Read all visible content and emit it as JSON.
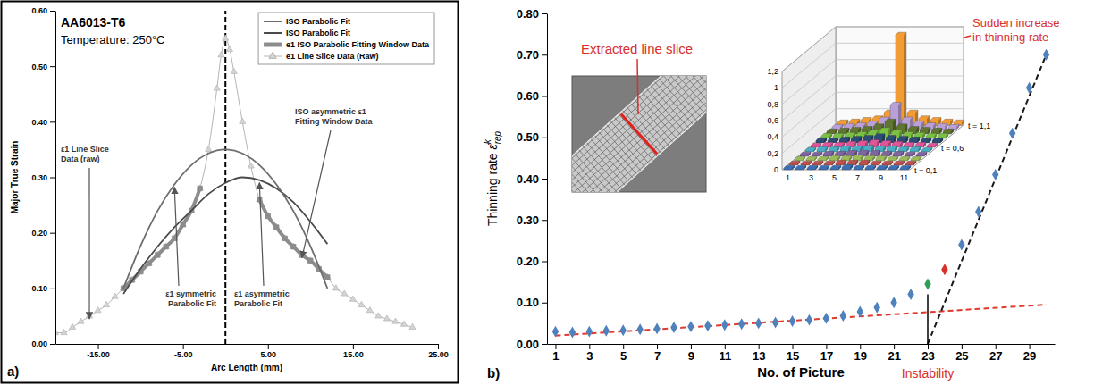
{
  "chart_data": [
    {
      "type": "line",
      "panel_label": "a)",
      "title": "AA6013-T6",
      "subtitle": "Temperature: 250°C",
      "x_label": "Arc Length (mm)",
      "y_label": "Major True Strain",
      "xlim": [
        -20,
        25
      ],
      "xticks": [
        {
          "value": -15,
          "label": "-15.00"
        },
        {
          "value": -5,
          "label": "-5.00"
        },
        {
          "value": 5,
          "label": "5.00"
        },
        {
          "value": 15,
          "label": "15.00"
        },
        {
          "value": 25,
          "label": "25.00"
        }
      ],
      "ylim": [
        0,
        0.6
      ],
      "yticks": [
        {
          "value": 0,
          "label": "0.00"
        },
        {
          "value": 0.1,
          "label": "0.10"
        },
        {
          "value": 0.2,
          "label": "0.20"
        },
        {
          "value": 0.3,
          "label": "0.30"
        },
        {
          "value": 0.4,
          "label": "0.40"
        },
        {
          "value": 0.5,
          "label": "0.50"
        },
        {
          "value": 0.6,
          "label": "0.60"
        }
      ],
      "legend": "top-right",
      "reference_line_x": 0,
      "series": [
        {
          "name": "ISO Parabolic Fit",
          "color": "#6e6e6e",
          "line_style": "solid",
          "x": [
            -12,
            -10,
            -8,
            -6,
            -4,
            -2,
            0,
            2,
            4,
            6,
            8,
            10,
            12
          ],
          "values": [
            0.1,
            0.176,
            0.239,
            0.287,
            0.322,
            0.343,
            0.35,
            0.343,
            0.322,
            0.287,
            0.239,
            0.176,
            0.1
          ]
        },
        {
          "name": "ISO Parabolic Fit",
          "color": "#4a4a4a",
          "line_style": "solid",
          "x": [
            -12,
            -10,
            -8,
            -6,
            -4,
            -2,
            0,
            2,
            4,
            6,
            8,
            10,
            12
          ],
          "values": [
            0.09,
            0.135,
            0.175,
            0.21,
            0.24,
            0.27,
            0.29,
            0.3,
            0.295,
            0.28,
            0.255,
            0.22,
            0.18
          ]
        },
        {
          "name": "e1 ISO Parabolic Fitting Window Data",
          "color": "#8c8c8c",
          "marker": "square",
          "line_style": "solid",
          "x": [
            -12,
            -11,
            -10,
            -9,
            -8,
            -7,
            -6,
            -5,
            -4,
            -3,
            0,
            4,
            5,
            6,
            7,
            8,
            9,
            10,
            11,
            12
          ],
          "values": [
            0.1,
            0.115,
            0.13,
            0.145,
            0.16,
            0.175,
            0.19,
            0.215,
            0.24,
            0.28,
            null,
            0.26,
            0.23,
            0.21,
            0.19,
            0.175,
            0.16,
            0.15,
            0.135,
            0.12
          ]
        },
        {
          "name": "e1 Line Slice Data (Raw)",
          "color": "#b4b4b4",
          "marker": "triangle",
          "line_style": "solid",
          "x": [
            -20,
            -19,
            -18,
            -17,
            -16,
            -15,
            -14,
            -13,
            -12,
            -11,
            -10,
            -9,
            -8,
            -7,
            -6,
            -5,
            -4,
            -3,
            -2,
            -1,
            -0.5,
            0,
            0.5,
            1,
            2,
            3,
            4,
            5,
            6,
            7,
            8,
            9,
            10,
            11,
            12,
            13,
            14,
            15,
            16,
            17,
            18,
            19,
            20,
            21,
            22
          ],
          "values": [
            0.02,
            0.02,
            0.03,
            0.04,
            0.05,
            0.06,
            0.07,
            0.085,
            0.1,
            0.115,
            0.13,
            0.145,
            0.16,
            0.175,
            0.19,
            0.215,
            0.24,
            0.28,
            0.35,
            0.46,
            0.52,
            0.55,
            0.53,
            0.49,
            0.4,
            0.32,
            0.26,
            0.23,
            0.21,
            0.19,
            0.175,
            0.16,
            0.15,
            0.135,
            0.12,
            0.1,
            0.09,
            0.08,
            0.07,
            0.06,
            0.05,
            0.045,
            0.04,
            0.035,
            0.03
          ]
        }
      ],
      "annotations": [
        "ε1 Line Slice Data (raw)",
        "ISO asymmetric ε1 Fitting Window Data",
        "ε1 symmetric Parabolic Fit",
        "ε1 asymmetric Parabolic Fit"
      ]
    },
    {
      "type": "scatter",
      "panel_label": "b)",
      "x_label": "No. of Picture",
      "y_label": "Thinning rate",
      "y_label_symbol": "ε̇",
      "y_label_superscript": "k",
      "y_label_subscript": "rep",
      "xlim": [
        0.5,
        30.5
      ],
      "xticks": [
        1,
        3,
        5,
        7,
        9,
        11,
        13,
        15,
        17,
        19,
        21,
        23,
        25,
        27,
        29
      ],
      "ylim": [
        0,
        0.8
      ],
      "yticks": [
        {
          "value": 0,
          "label": "0.00"
        },
        {
          "value": 0.1,
          "label": "0.10"
        },
        {
          "value": 0.2,
          "label": "0.20"
        },
        {
          "value": 0.3,
          "label": "0.30"
        },
        {
          "value": 0.4,
          "label": "0.40"
        },
        {
          "value": 0.5,
          "label": "0.50"
        },
        {
          "value": 0.6,
          "label": "0.60"
        },
        {
          "value": 0.7,
          "label": "0.70"
        },
        {
          "value": 0.8,
          "label": "0.80"
        }
      ],
      "marker": "diamond",
      "x": [
        1,
        2,
        3,
        4,
        5,
        6,
        7,
        8,
        9,
        10,
        11,
        12,
        13,
        14,
        15,
        16,
        17,
        18,
        19,
        20,
        21,
        22,
        23,
        24,
        25,
        26,
        27,
        28,
        29,
        30
      ],
      "values": [
        0.03,
        0.028,
        0.03,
        0.032,
        0.033,
        0.035,
        0.037,
        0.04,
        0.042,
        0.044,
        0.046,
        0.048,
        0.05,
        0.052,
        0.055,
        0.058,
        0.062,
        0.068,
        0.078,
        0.088,
        0.1,
        0.12,
        0.145,
        0.18,
        0.24,
        0.32,
        0.41,
        0.51,
        0.62,
        0.7
      ],
      "colors": [
        "#4f81bd",
        "#4f81bd",
        "#4f81bd",
        "#4f81bd",
        "#4f81bd",
        "#4f81bd",
        "#4f81bd",
        "#4f81bd",
        "#4f81bd",
        "#4f81bd",
        "#4f81bd",
        "#4f81bd",
        "#4f81bd",
        "#4f81bd",
        "#4f81bd",
        "#4f81bd",
        "#4f81bd",
        "#4f81bd",
        "#4f81bd",
        "#4f81bd",
        "#4f81bd",
        "#4f81bd",
        "#2ca05a",
        "#d9302b",
        "#4f81bd",
        "#4f81bd",
        "#4f81bd",
        "#4f81bd",
        "#4f81bd",
        "#4f81bd"
      ],
      "trend_lines": [
        {
          "x": [
            1,
            30
          ],
          "values": [
            0.02,
            0.095
          ],
          "color": "#e0392d",
          "line_style": "dashed"
        },
        {
          "x": [
            23,
            30
          ],
          "values": [
            0,
            0.7
          ],
          "color": "#1a1a1a",
          "line_style": "dashed"
        }
      ],
      "instability": {
        "text": "Instability",
        "x": 23,
        "y": 0.12
      },
      "annotations": [
        "Extracted line slice",
        "Sudden increase in thinning rate"
      ]
    },
    {
      "type": "bar3d",
      "x": [
        1,
        2,
        3,
        4,
        5,
        6,
        7,
        8,
        9,
        10,
        11
      ],
      "xticks": [
        1,
        3,
        5,
        7,
        9,
        11
      ],
      "rows": [
        "t = 0,1",
        null,
        null,
        null,
        null,
        "t = 0,6",
        null,
        null,
        null,
        null,
        "t = 1,1"
      ],
      "zlim": [
        0,
        1.2
      ],
      "zticks": [
        0,
        {
          "value": 0.2,
          "label": "0,2"
        },
        {
          "value": 0.4,
          "label": "0,4"
        },
        {
          "value": 0.6,
          "label": "0,6"
        },
        {
          "value": 0.8,
          "label": "0,8"
        },
        1,
        {
          "value": 1.2,
          "label": "1,2"
        }
      ],
      "colors": [
        "#3b6fb6",
        "#c0504d",
        "#9bbb59",
        "#8064a2",
        "#4bacc6",
        "#e0559a",
        "#2c4d75",
        "#7ac143",
        "#5f7530",
        "#b9a0d6",
        "#f39c33"
      ],
      "values": [
        [
          0.02,
          0.02,
          0.02,
          0.02,
          0.02,
          0.03,
          0.02,
          0.02,
          0.02,
          0.02,
          0.02
        ],
        [
          0.02,
          0.02,
          0.02,
          0.02,
          0.03,
          0.03,
          0.03,
          0.02,
          0.02,
          0.02,
          0.02
        ],
        [
          0.02,
          0.02,
          0.02,
          0.03,
          0.03,
          0.04,
          0.03,
          0.03,
          0.02,
          0.02,
          0.02
        ],
        [
          0.02,
          0.02,
          0.03,
          0.03,
          0.04,
          0.04,
          0.04,
          0.03,
          0.03,
          0.02,
          0.02
        ],
        [
          0.02,
          0.03,
          0.03,
          0.04,
          0.04,
          0.05,
          0.04,
          0.04,
          0.03,
          0.03,
          0.02
        ],
        [
          0.02,
          0.03,
          0.03,
          0.04,
          0.05,
          0.06,
          0.05,
          0.04,
          0.03,
          0.03,
          0.02
        ],
        [
          0.03,
          0.03,
          0.04,
          0.05,
          0.06,
          0.08,
          0.06,
          0.05,
          0.04,
          0.03,
          0.03
        ],
        [
          0.03,
          0.03,
          0.04,
          0.05,
          0.07,
          0.1,
          0.07,
          0.05,
          0.04,
          0.03,
          0.03
        ],
        [
          0.03,
          0.04,
          0.05,
          0.06,
          0.09,
          0.15,
          0.09,
          0.06,
          0.05,
          0.04,
          0.03
        ],
        [
          0.03,
          0.04,
          0.05,
          0.07,
          0.12,
          0.3,
          0.12,
          0.07,
          0.05,
          0.04,
          0.03
        ],
        [
          0.03,
          0.04,
          0.06,
          0.08,
          0.15,
          1.1,
          0.15,
          0.08,
          0.06,
          0.04,
          0.03
        ]
      ]
    }
  ]
}
